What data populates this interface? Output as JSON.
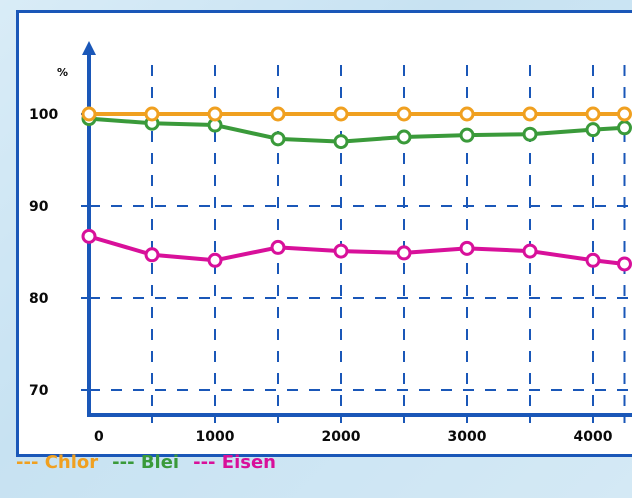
{
  "chart_data": {
    "type": "line",
    "title": "",
    "xlabel": "",
    "ylabel": "%",
    "x": [
      0,
      500,
      1000,
      1500,
      2000,
      2500,
      3000,
      3500,
      4000,
      4250
    ],
    "x_ticks": [
      0,
      1000,
      2000,
      3000,
      4000
    ],
    "y_ticks": [
      70,
      80,
      90,
      100
    ],
    "xlim": [
      0,
      4250
    ],
    "ylim": [
      66,
      106
    ],
    "grid": true,
    "legend_position": "bottom-left",
    "series": [
      {
        "name": "Chlor",
        "legend_prefix": "---",
        "color": "#f0a020",
        "values": [
          100,
          100,
          100,
          100,
          100,
          100,
          100,
          100,
          100,
          100
        ]
      },
      {
        "name": "Blei",
        "legend_prefix": "---",
        "color": "#3a9a3a",
        "values": [
          99.5,
          99,
          98.8,
          97.3,
          97,
          97.5,
          97.7,
          97.8,
          98.3,
          98.5
        ]
      },
      {
        "name": "Eisen",
        "legend_prefix": "---",
        "color": "#d8109a",
        "values": [
          86.7,
          84.7,
          84.1,
          85.5,
          85.1,
          84.9,
          85.4,
          85.1,
          84.1,
          83.7
        ]
      }
    ]
  }
}
